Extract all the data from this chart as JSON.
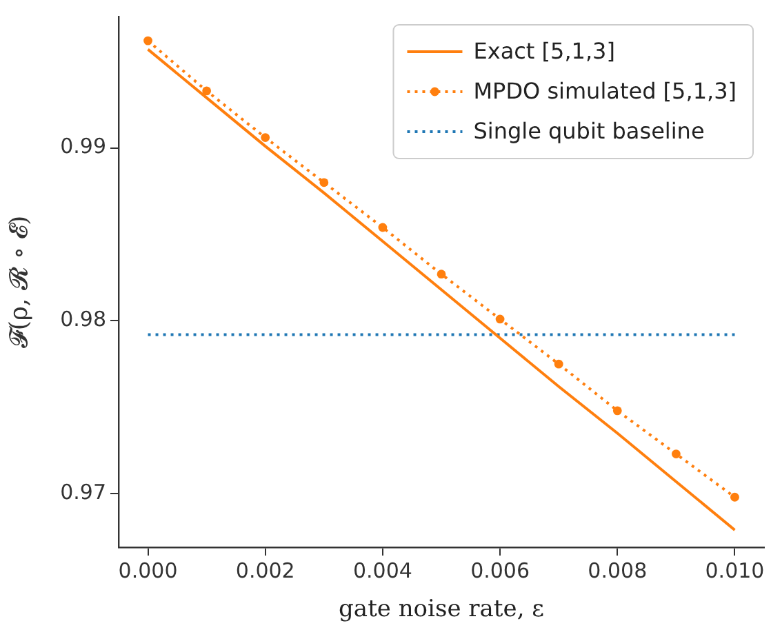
{
  "chart_data": {
    "type": "line",
    "xlabel": "gate noise rate, ε",
    "ylabel": "𝓕(ρ, 𝓡 ∘ 𝓔)",
    "x": [
      0,
      0.001,
      0.002,
      0.003,
      0.004,
      0.005,
      0.006,
      0.007,
      0.008,
      0.009,
      0.01
    ],
    "series": [
      {
        "name": "Exact [5,1,3]",
        "color": "#ff7f0e",
        "values": [
          0.9957,
          0.9929,
          0.9901,
          0.9874,
          0.9846,
          0.9818,
          0.979,
          0.9762,
          0.9735,
          0.9707,
          0.9679
        ],
        "marker": "none",
        "line_style": "solid"
      },
      {
        "name": "MPDO simulated [5,1,3]",
        "color": "#ff7f0e",
        "values": [
          0.9962,
          0.9933,
          0.9906,
          0.988,
          0.9854,
          0.9827,
          0.9801,
          0.9775,
          0.9748,
          0.9723,
          0.9698
        ],
        "marker": "circle",
        "line_style": "dotted"
      },
      {
        "name": "Single qubit baseline",
        "color": "#1f77b4",
        "values": [
          0.9792,
          0.9792,
          0.9792,
          0.9792,
          0.9792,
          0.9792,
          0.9792,
          0.9792,
          0.9792,
          0.9792,
          0.9792
        ],
        "marker": "none",
        "line_style": "dotted"
      }
    ],
    "xlim": [
      -0.0005,
      0.0105
    ],
    "ylim": [
      0.9669,
      0.9976
    ],
    "xticks": [
      {
        "value": 0,
        "label": "0.000"
      },
      {
        "value": 0.002,
        "label": "0.002"
      },
      {
        "value": 0.004,
        "label": "0.004"
      },
      {
        "value": 0.006,
        "label": "0.006"
      },
      {
        "value": 0.008,
        "label": "0.008"
      },
      {
        "value": 0.01,
        "label": "0.010"
      }
    ],
    "yticks": [
      0.97,
      0.98,
      0.99
    ],
    "grid": false,
    "legend": "top right"
  }
}
